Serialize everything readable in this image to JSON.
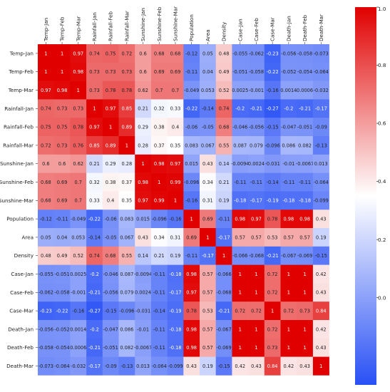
{
  "chart_data": {
    "type": "heatmap",
    "title": "",
    "xlabel": "",
    "ylabel": "",
    "labels": [
      "Temp-Jan",
      "Temp-Feb",
      "Temp-Mar",
      "Rainfall-Jan",
      "Rainfall-Feb",
      "Rainfall-Mar",
      "Sunshine-Jan",
      "Sunshine-Feb",
      "Sunshine-Mar",
      "Population",
      "Area",
      "Density",
      "Case-Jan",
      "Case-Feb",
      "Case-Mar",
      "Death-Jan",
      "Death-Feb",
      "Death-Mar"
    ],
    "matrix": [
      [
        1,
        1,
        0.97,
        0.74,
        0.75,
        0.72,
        0.6,
        0.68,
        0.68,
        -0.12,
        0.05,
        0.48,
        -0.055,
        -0.062,
        -0.23,
        -0.056,
        -0.058,
        -0.073
      ],
      [
        1,
        1,
        0.98,
        0.73,
        0.73,
        0.73,
        0.6,
        0.69,
        0.69,
        -0.11,
        0.04,
        0.49,
        -0.051,
        -0.058,
        -0.22,
        -0.052,
        -0.054,
        -0.064
      ],
      [
        0.97,
        0.98,
        1,
        0.73,
        0.78,
        0.78,
        0.62,
        0.7,
        0.7,
        -0.049,
        0.053,
        0.52,
        0.0025,
        -0.001,
        -0.16,
        0.0014,
        0.0006,
        -0.032
      ],
      [
        0.74,
        0.73,
        0.73,
        1,
        0.97,
        0.85,
        0.21,
        0.32,
        0.33,
        -0.22,
        -0.14,
        0.74,
        -0.2,
        -0.21,
        -0.27,
        -0.2,
        -0.21,
        -0.17
      ],
      [
        0.75,
        0.75,
        0.78,
        0.97,
        1,
        0.89,
        0.29,
        0.38,
        0.4,
        -0.06,
        -0.05,
        0.68,
        -0.046,
        -0.056,
        -0.15,
        -0.047,
        -0.051,
        -0.09
      ],
      [
        0.72,
        0.73,
        0.76,
        0.85,
        0.89,
        1,
        0.28,
        0.37,
        0.35,
        0.083,
        0.067,
        0.55,
        0.087,
        0.079,
        -0.096,
        0.086,
        0.082,
        -0.13
      ],
      [
        0.6,
        0.6,
        0.62,
        0.21,
        0.29,
        0.28,
        1,
        0.98,
        0.97,
        0.015,
        0.43,
        0.14,
        -0.0094,
        0.0024,
        -0.031,
        -0.01,
        -0.0067,
        0.013
      ],
      [
        0.68,
        0.69,
        0.7,
        0.32,
        0.38,
        0.37,
        0.98,
        1,
        0.99,
        -0.096,
        0.34,
        0.21,
        -0.11,
        -0.11,
        -0.14,
        -0.11,
        -0.11,
        -0.064
      ],
      [
        0.68,
        0.69,
        0.7,
        0.33,
        0.4,
        0.35,
        0.97,
        0.99,
        1,
        -0.16,
        0.31,
        0.19,
        -0.18,
        -0.17,
        -0.19,
        -0.18,
        -0.18,
        -0.099
      ],
      [
        -0.12,
        -0.11,
        -0.049,
        -0.22,
        -0.06,
        0.083,
        0.015,
        -0.096,
        -0.16,
        1,
        0.69,
        -0.11,
        0.98,
        0.97,
        0.78,
        0.98,
        0.98,
        0.43
      ],
      [
        0.05,
        0.04,
        0.053,
        -0.14,
        -0.05,
        0.067,
        0.43,
        0.34,
        0.31,
        0.69,
        1,
        -0.17,
        0.57,
        0.57,
        0.53,
        0.57,
        0.57,
        0.19
      ],
      [
        0.48,
        0.49,
        0.52,
        0.74,
        0.68,
        0.55,
        0.14,
        0.21,
        0.19,
        -0.11,
        -0.17,
        1,
        -0.066,
        -0.068,
        -0.21,
        -0.067,
        -0.069,
        -0.15
      ],
      [
        -0.055,
        -0.051,
        0.0025,
        -0.2,
        -0.046,
        0.087,
        -0.0094,
        -0.11,
        -0.18,
        0.98,
        0.57,
        -0.066,
        1,
        1,
        0.72,
        1,
        1,
        0.42
      ],
      [
        -0.062,
        -0.058,
        -0.001,
        -0.21,
        -0.056,
        0.079,
        0.0024,
        -0.11,
        -0.17,
        0.97,
        0.57,
        -0.068,
        1,
        1,
        0.72,
        1,
        1,
        0.43
      ],
      [
        -0.23,
        -0.22,
        -0.16,
        -0.27,
        -0.15,
        -0.096,
        -0.031,
        -0.14,
        -0.19,
        0.78,
        0.53,
        -0.21,
        0.72,
        0.72,
        1,
        0.72,
        0.73,
        0.84
      ],
      [
        -0.056,
        -0.052,
        0.0014,
        -0.2,
        -0.047,
        0.086,
        -0.01,
        -0.11,
        -0.18,
        0.98,
        0.57,
        -0.067,
        1,
        1,
        0.72,
        1,
        1,
        0.42
      ],
      [
        -0.058,
        -0.054,
        0.0006,
        -0.21,
        -0.051,
        0.082,
        -0.0067,
        -0.11,
        -0.18,
        0.98,
        0.57,
        -0.069,
        1,
        1,
        0.73,
        1,
        1,
        0.43
      ],
      [
        -0.073,
        -0.064,
        -0.032,
        -0.17,
        -0.09,
        -0.13,
        0.013,
        -0.064,
        -0.099,
        0.43,
        0.19,
        -0.15,
        0.42,
        0.43,
        0.84,
        0.42,
        0.43,
        1
      ]
    ],
    "colorbar": {
      "min": -0.3,
      "max": 1.0,
      "ticks": [
        1.0,
        0.8,
        0.6,
        0.4,
        0.2,
        0.0
      ],
      "tick_labels": [
        "1.0",
        "0.8",
        "0.6",
        "0.4",
        "0.2",
        "0.0"
      ],
      "colormap": "bwr"
    },
    "grid": false,
    "legend": "colorbar-right"
  }
}
